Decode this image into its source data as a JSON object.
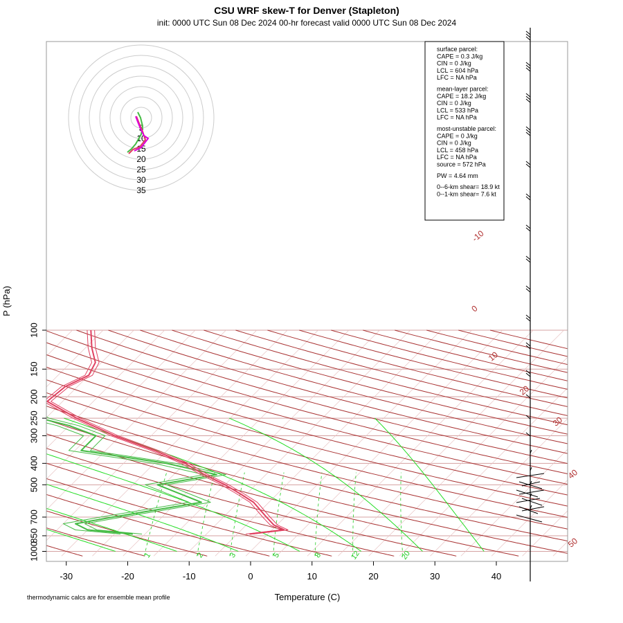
{
  "title": "CSU WRF skew-T for Denver (Stapleton)",
  "subtitle": "init: 0000 UTC Sun 08 Dec 2024     00-hr forecast valid 0000 UTC Sun 08 Dec 2024",
  "footnote": "thermodynamic calcs are for ensemble mean profile",
  "info_box": {
    "surface": [
      "surface parcel:",
      "CAPE = 0.3 J/kg",
      "CIN = 0 J/kg",
      "LCL = 604 hPa",
      "LFC = NA hPa"
    ],
    "mean_layer": [
      "mean-layer parcel:",
      "CAPE = 18.2 J/kg",
      "CIN = 0 J/kg",
      "LCL = 533 hPa",
      "LFC = NA hPa"
    ],
    "most_unstable": [
      "most-unstable parcel:",
      "CAPE = 0 J/kg",
      "CIN = 0 J/kg",
      "LCL = 458 hPa",
      "LFC = NA hPa",
      "source = 572 hPa"
    ],
    "pw": "PW =  4.64 mm",
    "shear": [
      "0--6-km shear= 18.9 kt",
      "0--1-km shear= 7.6 kt"
    ]
  },
  "hodograph_ring_labels": [
    "5",
    "10",
    "15",
    "20",
    "25",
    "30",
    "35"
  ],
  "colors": {
    "temperature": "#e04060",
    "dewpoint": "#44bb44",
    "isotherm": "#cc8888",
    "dry_adiabat": "#a83030",
    "moist_adiabat": "#22dd22",
    "mixing_ratio": "#22cc22",
    "isobar": "#d4a0a0",
    "hodo_magenta": "#dd00dd"
  },
  "chart_data": {
    "type": "line",
    "xlabel": "Temperature (C)",
    "ylabel": "P (hPa)",
    "x_ticks": [
      -30,
      -20,
      -10,
      0,
      10,
      20,
      30,
      40
    ],
    "p_ticks": [
      100,
      150,
      200,
      250,
      300,
      400,
      500,
      700,
      850,
      1000
    ],
    "xlim": [
      -33,
      45
    ],
    "plim": [
      1050,
      100
    ],
    "isotherm_labels": [
      "-10",
      "0",
      "10",
      "20",
      "30",
      "40",
      "50"
    ],
    "mixing_ratio_labels": [
      "1",
      "2",
      "3",
      "5",
      "8",
      "12",
      "20"
    ],
    "temperature_profile": [
      {
        "p": 835,
        "t": -3.0
      },
      {
        "p": 800,
        "t": 2.0
      },
      {
        "p": 760,
        "t": -0.5
      },
      {
        "p": 700,
        "t": -3.0
      },
      {
        "p": 600,
        "t": -7.5
      },
      {
        "p": 550,
        "t": -11.0
      },
      {
        "p": 500,
        "t": -15.0
      },
      {
        "p": 450,
        "t": -20.0
      },
      {
        "p": 400,
        "t": -25.0
      },
      {
        "p": 350,
        "t": -32.0
      },
      {
        "p": 300,
        "t": -41.0
      },
      {
        "p": 250,
        "t": -50.0
      },
      {
        "p": 210,
        "t": -57.5
      },
      {
        "p": 180,
        "t": -57.0
      },
      {
        "p": 160,
        "t": -55.0
      },
      {
        "p": 140,
        "t": -56.0
      },
      {
        "p": 120,
        "t": -59.0
      },
      {
        "p": 100,
        "t": -62.0
      }
    ],
    "dewpoint_profile": [
      {
        "p": 835,
        "t": -22.0
      },
      {
        "p": 800,
        "t": -30.0
      },
      {
        "p": 750,
        "t": -33.0
      },
      {
        "p": 700,
        "t": -28.0
      },
      {
        "p": 600,
        "t": -16.0
      },
      {
        "p": 500,
        "t": -26.0
      },
      {
        "p": 450,
        "t": -18.0
      },
      {
        "p": 400,
        "t": -28.0
      },
      {
        "p": 350,
        "t": -44.0
      },
      {
        "p": 300,
        "t": -44.0
      },
      {
        "p": 270,
        "t": -50.0
      },
      {
        "p": 250,
        "t": -56.0
      },
      {
        "p": 200,
        "t": -66.0
      },
      {
        "p": 170,
        "t": -70.0
      }
    ]
  }
}
